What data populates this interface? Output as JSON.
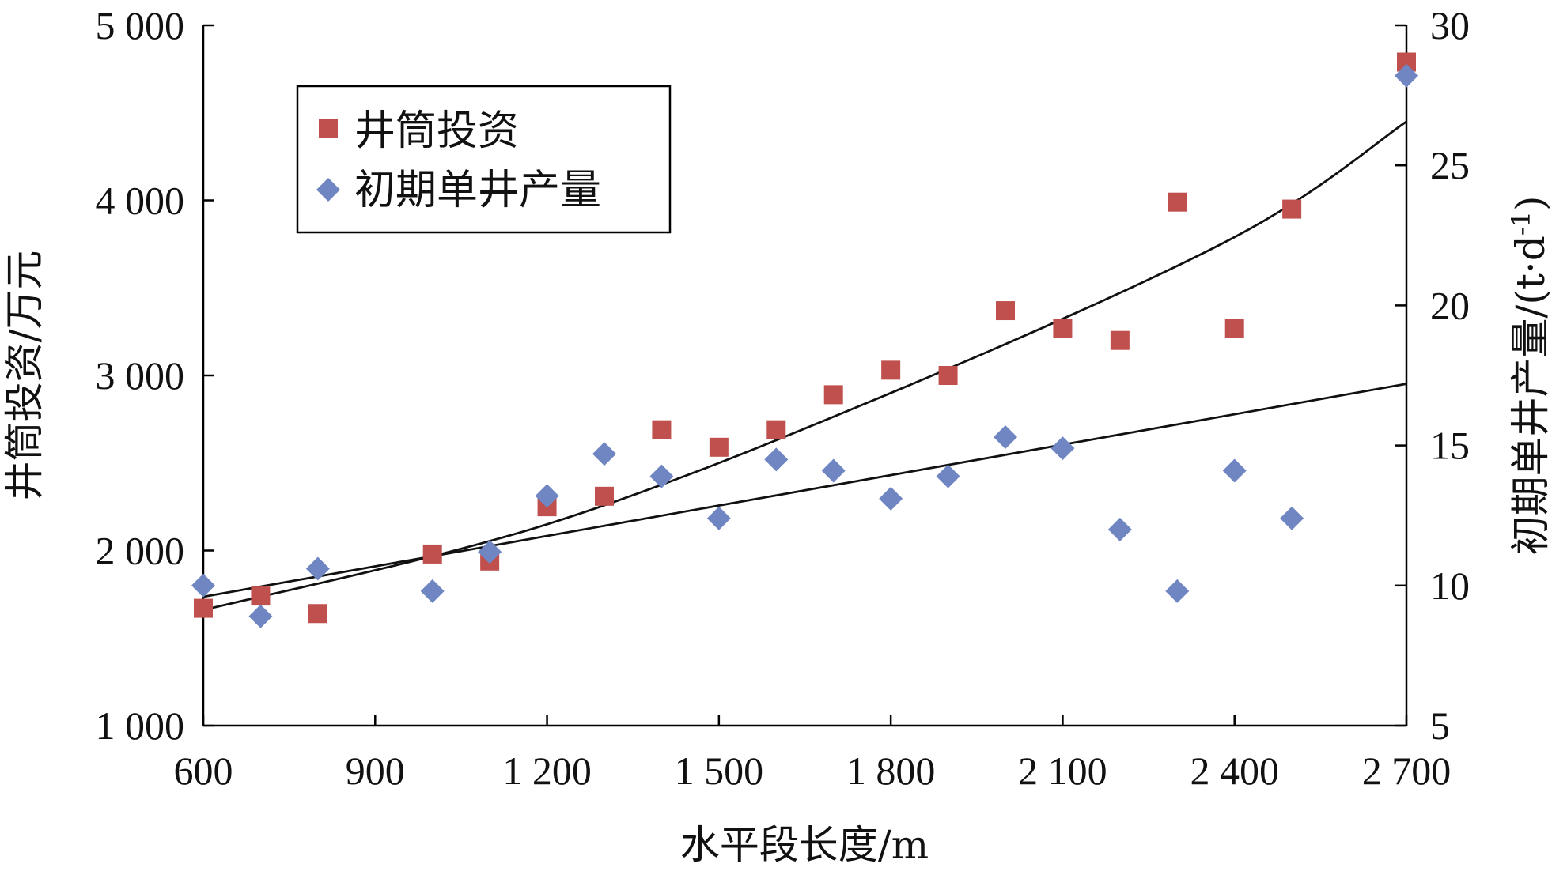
{
  "chart_data": {
    "type": "scatter",
    "x": {
      "label": "水平段长度/m",
      "range": [
        600,
        2700
      ],
      "ticks": [
        600,
        900,
        1200,
        1500,
        1800,
        2100,
        2400,
        2700
      ],
      "tick_labels": [
        "600",
        "900",
        "1 200",
        "1 500",
        "1 800",
        "2 100",
        "2 400",
        "2 700"
      ]
    },
    "y_left": {
      "label": "井筒投资/万元",
      "range": [
        1000,
        5000
      ],
      "ticks": [
        1000,
        2000,
        3000,
        4000,
        5000
      ],
      "tick_labels": [
        "1 000",
        "2 000",
        "3 000",
        "4 000",
        "5 000"
      ]
    },
    "y_right": {
      "label_main": "初期单井产量/(t·d",
      "label_sup": "-1",
      "label_end": ")",
      "range": [
        5,
        30
      ],
      "ticks": [
        5,
        10,
        15,
        20,
        25,
        30
      ],
      "tick_labels": [
        "5",
        "10",
        "15",
        "20",
        "25",
        "30"
      ]
    },
    "series": [
      {
        "name": "井筒投资",
        "axis": "left",
        "marker": "square",
        "color": "#c0504d",
        "points": [
          [
            600,
            1670
          ],
          [
            700,
            1740
          ],
          [
            800,
            1640
          ],
          [
            1000,
            1980
          ],
          [
            1100,
            1940
          ],
          [
            1200,
            2250
          ],
          [
            1300,
            2310
          ],
          [
            1400,
            2690
          ],
          [
            1500,
            2590
          ],
          [
            1600,
            2690
          ],
          [
            1700,
            2890
          ],
          [
            1800,
            3030
          ],
          [
            1900,
            3000
          ],
          [
            2000,
            3370
          ],
          [
            2100,
            3270
          ],
          [
            2200,
            3200
          ],
          [
            2300,
            3990
          ],
          [
            2400,
            3270
          ],
          [
            2500,
            3950
          ],
          [
            2700,
            4790
          ]
        ],
        "trend": {
          "type": "quadratic",
          "points": [
            [
              600,
              1660
            ],
            [
              1200,
              2150
            ],
            [
              1800,
              2900
            ],
            [
              2400,
              3790
            ],
            [
              2700,
              4450
            ]
          ]
        }
      },
      {
        "name": "初期单井产量",
        "axis": "right",
        "marker": "diamond",
        "color": "#6f86c2",
        "points": [
          [
            600,
            10.0
          ],
          [
            700,
            8.9
          ],
          [
            800,
            10.6
          ],
          [
            1000,
            9.8
          ],
          [
            1100,
            11.2
          ],
          [
            1200,
            13.2
          ],
          [
            1300,
            14.7
          ],
          [
            1400,
            13.9
          ],
          [
            1500,
            12.4
          ],
          [
            1600,
            14.5
          ],
          [
            1700,
            14.1
          ],
          [
            1800,
            13.1
          ],
          [
            1900,
            13.9
          ],
          [
            2000,
            15.3
          ],
          [
            2100,
            14.9
          ],
          [
            2200,
            12.0
          ],
          [
            2300,
            9.8
          ],
          [
            2400,
            14.1
          ],
          [
            2500,
            12.4
          ],
          [
            2700,
            28.2
          ]
        ],
        "trend": {
          "type": "linear",
          "points": [
            [
              600,
              9.6
            ],
            [
              2700,
              17.2
            ]
          ]
        }
      }
    ],
    "legend_position": "top-left",
    "grid": false
  }
}
